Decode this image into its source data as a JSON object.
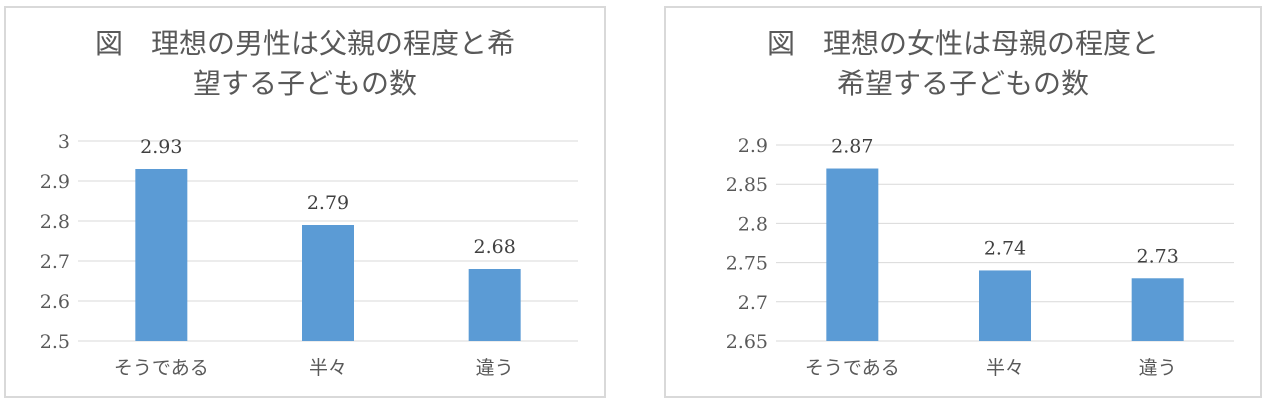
{
  "chart_data": [
    {
      "type": "bar",
      "title_lines": [
        "図　理想の男性は父親の程度と希",
        "望する子どもの数"
      ],
      "categories": [
        "そうである",
        "半々",
        "違う"
      ],
      "values": [
        2.93,
        2.79,
        2.68
      ],
      "value_labels": [
        "2.93",
        "2.79",
        "2.68"
      ],
      "ylim": [
        2.5,
        3.0
      ],
      "yticks": [
        2.5,
        2.6,
        2.7,
        2.8,
        2.9,
        3.0
      ],
      "ytick_labels": [
        "2.5",
        "2.6",
        "2.7",
        "2.8",
        "2.9",
        "3"
      ],
      "grid": true,
      "bar_color": "#5b9bd5"
    },
    {
      "type": "bar",
      "title_lines": [
        "図　理想の女性は母親の程度と",
        "希望する子どもの数"
      ],
      "categories": [
        "そうである",
        "半々",
        "違う"
      ],
      "values": [
        2.87,
        2.74,
        2.73
      ],
      "value_labels": [
        "2.87",
        "2.74",
        "2.73"
      ],
      "ylim": [
        2.65,
        2.9
      ],
      "yticks": [
        2.65,
        2.7,
        2.75,
        2.8,
        2.85,
        2.9
      ],
      "ytick_labels": [
        "2.65",
        "2.7",
        "2.75",
        "2.8",
        "2.85",
        "2.9"
      ],
      "grid": true,
      "bar_color": "#5b9bd5"
    }
  ]
}
